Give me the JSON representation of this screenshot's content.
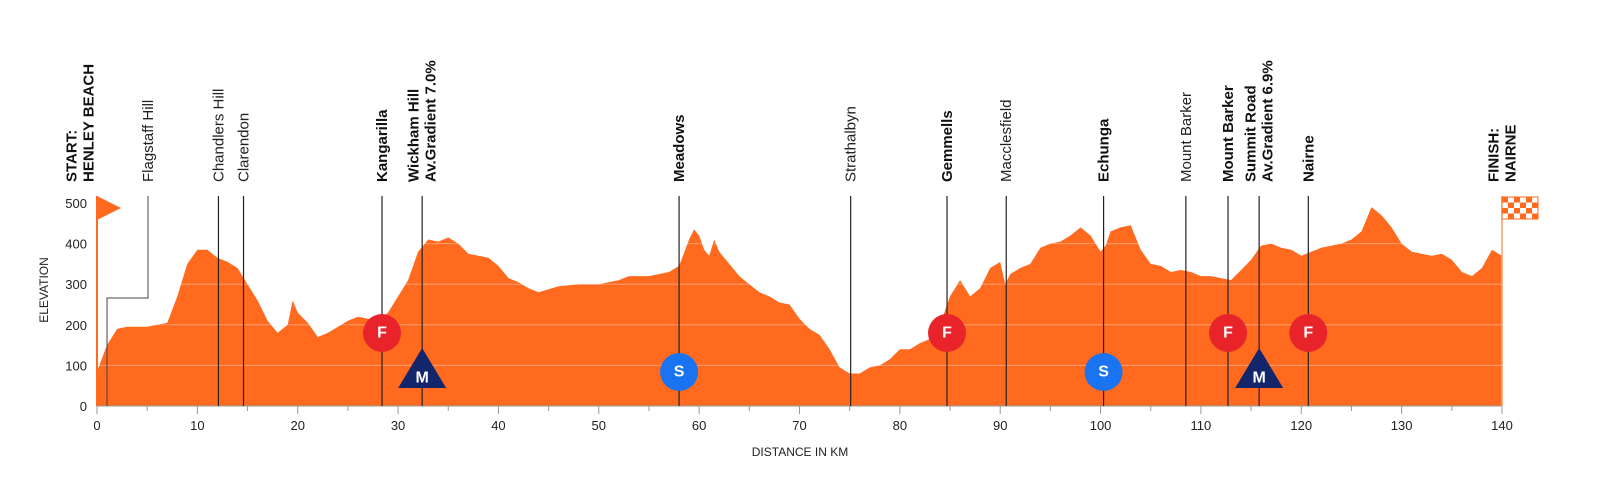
{
  "chart_data": {
    "type": "area",
    "color": "#ff6a1f",
    "x_label": "DISTANCE IN KM",
    "y_label": "ELEVATION",
    "xlim": [
      0,
      140
    ],
    "ylim": [
      0,
      500
    ],
    "xticks": [
      0,
      10,
      20,
      30,
      40,
      50,
      60,
      70,
      80,
      90,
      100,
      110,
      120,
      130,
      140
    ],
    "yticks": [
      0,
      100,
      200,
      300,
      400,
      500
    ],
    "grid": true,
    "x": [
      0,
      1,
      2,
      3,
      5,
      7,
      8,
      9,
      10,
      11,
      12,
      13,
      14,
      15,
      16,
      17,
      18,
      19,
      19.5,
      20,
      21,
      22,
      23,
      25,
      26,
      28,
      29,
      30,
      31,
      32,
      33,
      34,
      35,
      36,
      37,
      38,
      39,
      40,
      41,
      42,
      43,
      44,
      46,
      48,
      50,
      52,
      53,
      55,
      57,
      58,
      59,
      59.5,
      60,
      60.5,
      61,
      61.5,
      62,
      63,
      64,
      65,
      66,
      67,
      68,
      69,
      70,
      71,
      72,
      73,
      74,
      75,
      76,
      77,
      78,
      79,
      80,
      81,
      82,
      83,
      84,
      85,
      86,
      87,
      88,
      89,
      90,
      90.5,
      91,
      92,
      93,
      94,
      95,
      96,
      97,
      98,
      99,
      100,
      100.5,
      101,
      102,
      103,
      104,
      105,
      106,
      107,
      108,
      109,
      110,
      111,
      112,
      113,
      114,
      115,
      116,
      117,
      118,
      119,
      120,
      121,
      122,
      123,
      124,
      125,
      126,
      127,
      128,
      129,
      130,
      131,
      132,
      133,
      134,
      135,
      136,
      137,
      138,
      139,
      140
    ],
    "values": [
      85,
      150,
      190,
      195,
      195,
      205,
      270,
      350,
      385,
      385,
      365,
      355,
      340,
      300,
      260,
      210,
      180,
      200,
      260,
      230,
      205,
      170,
      180,
      210,
      220,
      210,
      230,
      270,
      310,
      380,
      410,
      405,
      415,
      400,
      375,
      370,
      365,
      345,
      315,
      305,
      290,
      280,
      295,
      300,
      300,
      310,
      320,
      320,
      330,
      345,
      410,
      435,
      420,
      385,
      370,
      410,
      380,
      350,
      320,
      300,
      280,
      270,
      255,
      250,
      215,
      190,
      175,
      140,
      95,
      80,
      80,
      95,
      100,
      115,
      140,
      140,
      155,
      165,
      200,
      270,
      310,
      270,
      290,
      340,
      355,
      300,
      325,
      340,
      350,
      390,
      400,
      405,
      420,
      440,
      420,
      380,
      395,
      430,
      440,
      445,
      385,
      350,
      345,
      330,
      335,
      330,
      320,
      320,
      315,
      310,
      335,
      360,
      395,
      400,
      390,
      385,
      370,
      380,
      390,
      395,
      400,
      410,
      430,
      490,
      470,
      440,
      400,
      380,
      375,
      370,
      375,
      360,
      330,
      320,
      340,
      385,
      370
    ],
    "locations": [
      {
        "km": 0,
        "lines": [
          "START:",
          "HENLEY BEACH"
        ],
        "bold": true
      },
      {
        "km": 0.5,
        "lines": [
          "Flagstaff Hill"
        ],
        "bold": false
      },
      {
        "km": 12.1,
        "lines": [
          "Chandlers Hill"
        ],
        "bold": false
      },
      {
        "km": 14.6,
        "lines": [
          "Clarendon"
        ],
        "bold": false
      },
      {
        "km": 28.4,
        "lines": [
          "Kangarilla"
        ],
        "bold": true
      },
      {
        "km": 32.4,
        "lines": [
          "Wickham Hill",
          "Av.Gradient 7.0%"
        ],
        "bold": true
      },
      {
        "km": 58.0,
        "lines": [
          "Meadows"
        ],
        "bold": true
      },
      {
        "km": 75.1,
        "lines": [
          "Strathalbyn"
        ],
        "bold": false
      },
      {
        "km": 84.7,
        "lines": [
          "Gemmells"
        ],
        "bold": true
      },
      {
        "km": 90.6,
        "lines": [
          "Macclesfield"
        ],
        "bold": false
      },
      {
        "km": 100.3,
        "lines": [
          "Echunga"
        ],
        "bold": true
      },
      {
        "km": 108.5,
        "lines": [
          "Mount Barker"
        ],
        "bold": false
      },
      {
        "km": 112.7,
        "lines": [
          "Mount Barker"
        ],
        "bold": true
      },
      {
        "km": 115.8,
        "lines": [
          "Summit Road",
          "Av.Gradient 6.9%"
        ],
        "bold": true
      },
      {
        "km": 120.7,
        "lines": [
          "Nairne"
        ],
        "bold": true
      },
      {
        "km": 140,
        "lines": [
          "FINISH:",
          "NAIRNE"
        ],
        "bold": true
      }
    ],
    "markers": [
      {
        "km": 28.4,
        "label": "F"
      },
      {
        "km": 32.4,
        "label": "M"
      },
      {
        "km": 58.0,
        "label": "S"
      },
      {
        "km": 84.7,
        "label": "F"
      },
      {
        "km": 100.3,
        "label": "S"
      },
      {
        "km": 112.7,
        "label": "F"
      },
      {
        "km": 115.8,
        "label": "M"
      },
      {
        "km": 120.7,
        "label": "F"
      }
    ]
  }
}
